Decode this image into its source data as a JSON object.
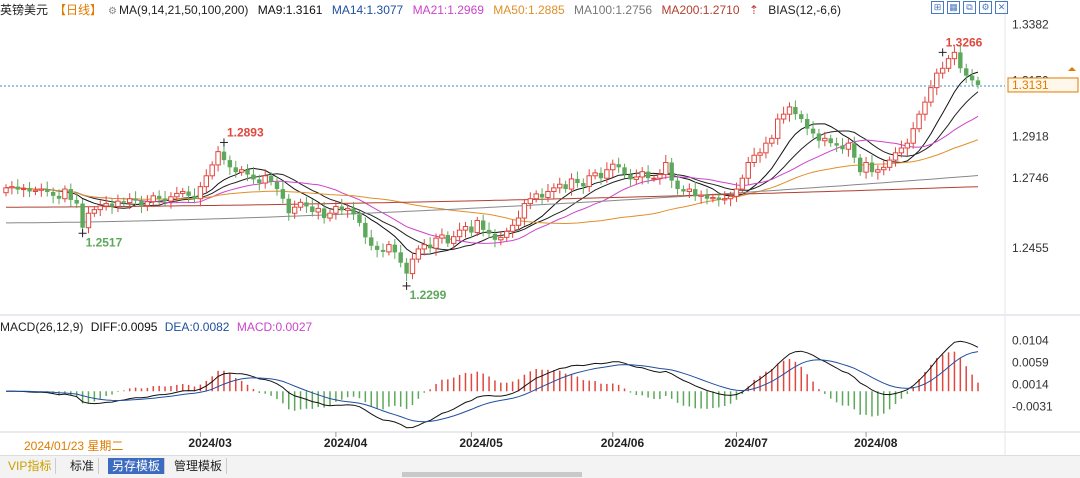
{
  "legend": {
    "symbol": "英镑美元",
    "period": "【日线】",
    "ma_label": "MA(9,14,21,50,100,200)",
    "ma9": "MA9:1.3161",
    "ma14": "MA14:1.3077",
    "ma21": "MA21:1.2969",
    "ma50": "MA50:1.2885",
    "ma100": "MA100:1.2756",
    "ma200": "MA200:1.2710",
    "bias": "BIAS(12,-6,6)"
  },
  "macd_legend": {
    "label": "MACD(26,12,9)",
    "diff": "DIFF:0.0095",
    "dea": "DEA:0.0082",
    "macd": "MACD:0.0027"
  },
  "date_tag": "2024/01/23 星期二",
  "tabs": [
    "VIP指标",
    "标准",
    "另存模板",
    "管理模板"
  ],
  "colors": {
    "up": "#e0473e",
    "down": "#5da85a",
    "ma9": "#111111",
    "ma14": "#222222",
    "ma21": "#cc44cc",
    "ma50": "#e0902a",
    "ma100": "#888888",
    "ma200": "#b04030",
    "accent": "#e07b00",
    "blue": "#3d6bbf"
  },
  "chart_data": [
    {
      "type": "candlestick",
      "y_ticks": [
        "1.3382",
        "1.3150",
        "1.2918",
        "1.2746",
        "1.2455"
      ],
      "ylim": [
        1.222,
        1.34
      ],
      "current_price": "1.3131",
      "x_labels": [
        "2024/03",
        "2024/04",
        "2024/05",
        "2024/06",
        "2024/07",
        "2024/08"
      ],
      "annotations": [
        {
          "text": "1.2893",
          "index": 37,
          "value": 1.2893,
          "color": "red"
        },
        {
          "text": "1.2517",
          "index": 13,
          "value": 1.2517,
          "color": "green"
        },
        {
          "text": "1.2299",
          "index": 68,
          "value": 1.2299,
          "color": "green"
        },
        {
          "text": "1.3266",
          "index": 159,
          "value": 1.3266,
          "color": "red"
        }
      ],
      "closes": [
        1.2705,
        1.271,
        1.2698,
        1.2702,
        1.269,
        1.2695,
        1.27,
        1.2688,
        1.2672,
        1.266,
        1.27,
        1.2655,
        1.264,
        1.254,
        1.26,
        1.2615,
        1.263,
        1.264,
        1.2628,
        1.265,
        1.2644,
        1.266,
        1.2652,
        1.2632,
        1.2648,
        1.2672,
        1.2661,
        1.265,
        1.2668,
        1.2682,
        1.269,
        1.2672,
        1.266,
        1.271,
        1.2755,
        1.28,
        1.2855,
        1.282,
        1.279,
        1.277,
        1.278,
        1.276,
        1.274,
        1.2725,
        1.2755,
        1.273,
        1.27,
        1.266,
        1.26,
        1.2625,
        1.2645,
        1.2628,
        1.2605,
        1.262,
        1.258,
        1.26,
        1.2628,
        1.2612,
        1.262,
        1.2595,
        1.256,
        1.25,
        1.2465,
        1.2448,
        1.244,
        1.247,
        1.2438,
        1.2395,
        1.235,
        1.241,
        1.2452,
        1.247,
        1.2455,
        1.2497,
        1.251,
        1.2475,
        1.2503,
        1.253,
        1.2545,
        1.252,
        1.257,
        1.2531,
        1.2515,
        1.249,
        1.25,
        1.2525,
        1.255,
        1.258,
        1.264,
        1.266,
        1.268,
        1.2665,
        1.269,
        1.2705,
        1.272,
        1.27,
        1.2742,
        1.2725,
        1.2711,
        1.2755,
        1.2767,
        1.2745,
        1.278,
        1.2803,
        1.279,
        1.276,
        1.274,
        1.275,
        1.2772,
        1.2745,
        1.2745,
        1.276,
        1.281,
        1.2735,
        1.27,
        1.269,
        1.27,
        1.267,
        1.2675,
        1.266,
        1.2665,
        1.2655,
        1.266,
        1.267,
        1.27,
        1.2745,
        1.281,
        1.284,
        1.285,
        1.289,
        1.291,
        1.299,
        1.301,
        1.304,
        1.301,
        1.299,
        1.295,
        1.293,
        1.29,
        1.291,
        1.289,
        1.288,
        1.2865,
        1.289,
        1.283,
        1.277,
        1.281,
        1.277,
        1.278,
        1.279,
        1.282,
        1.285,
        1.287,
        1.289,
        1.295,
        1.301,
        1.306,
        1.312,
        1.318,
        1.32,
        1.324,
        1.3266,
        1.32,
        1.317,
        1.315,
        1.3131
      ],
      "series": [
        {
          "name": "MA9",
          "value": 1.3161
        },
        {
          "name": "MA14",
          "value": 1.3077
        },
        {
          "name": "MA21",
          "value": 1.2969
        },
        {
          "name": "MA50",
          "value": 1.2885
        },
        {
          "name": "MA100",
          "value": 1.2756
        },
        {
          "name": "MA200",
          "value": 1.271
        }
      ]
    },
    {
      "type": "macd",
      "y_ticks": [
        "0.0104",
        "0.0059",
        "0.0014",
        "-0.0031"
      ],
      "ylim": [
        -0.0075,
        0.0125
      ],
      "diff": 0.0095,
      "dea": 0.0082,
      "macd": 0.0027
    }
  ]
}
